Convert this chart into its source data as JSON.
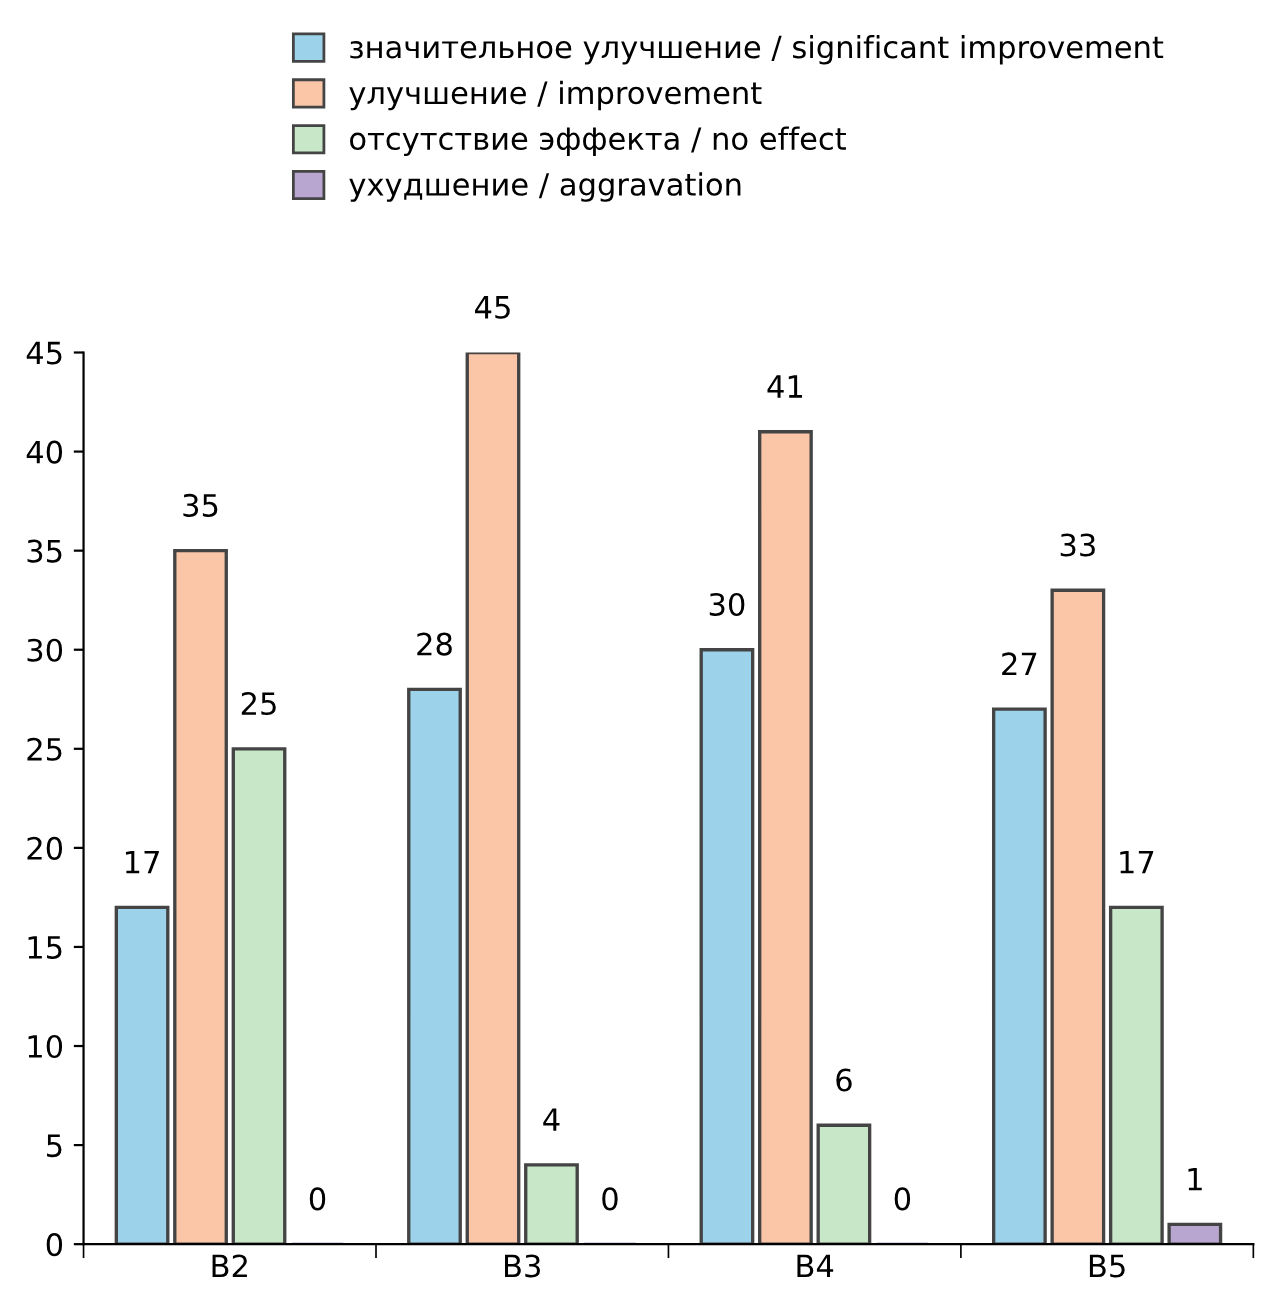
{
  "chart_data": {
    "type": "bar",
    "categories": [
      "B2",
      "B3",
      "B4",
      "B5"
    ],
    "series": [
      {
        "name": "значительное улучшение / significant improvement",
        "color": "#9dd3ea",
        "values": [
          17,
          28,
          30,
          27
        ]
      },
      {
        "name": "улучшение / improvement",
        "color": "#fbc5a8",
        "values": [
          35,
          45,
          41,
          33
        ]
      },
      {
        "name": "отсутствие эффекта / no effect",
        "color": "#c8e6c8",
        "values": [
          25,
          4,
          6,
          17
        ]
      },
      {
        "name": "ухудшение / aggravation",
        "color": "#b8a6d0",
        "values": [
          0,
          0,
          0,
          1
        ]
      }
    ],
    "ylim": [
      0,
      45
    ],
    "yticks": [
      0,
      5,
      10,
      15,
      20,
      25,
      30,
      35,
      40,
      45
    ],
    "grid": false,
    "legend": "top",
    "data_labels": true
  }
}
